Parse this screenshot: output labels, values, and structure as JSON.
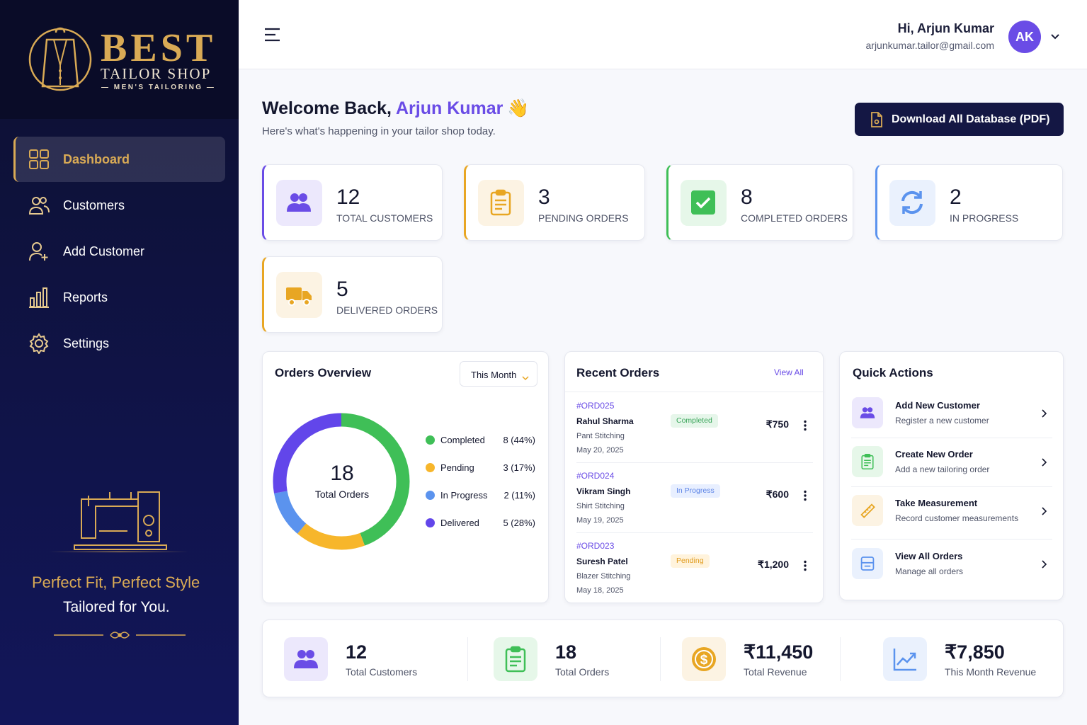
{
  "sidebar": {
    "brand": {
      "name": "BEST",
      "subtitle": "TAILOR SHOP",
      "tagline": "— MEN'S TAILORING —"
    },
    "nav": [
      {
        "label": "Dashboard",
        "active": true
      },
      {
        "label": "Customers",
        "active": false
      },
      {
        "label": "Add Customer",
        "active": false
      },
      {
        "label": "Reports",
        "active": false
      },
      {
        "label": "Settings",
        "active": false
      }
    ],
    "slogan": [
      "Perfect Fit, Perfect Style",
      "Tailored for You."
    ]
  },
  "header": {
    "greeting": "Hi, Arjun Kumar",
    "email": "arjunkumar.tailor@gmail.com",
    "initials": "AK"
  },
  "welcome": {
    "title": "Welcome Back, ",
    "name": "Arjun Kumar",
    "emoji": "👋",
    "subtitle": "Here's what's happening in your tailor shop today.",
    "button": "Download All Database (PDF)"
  },
  "stats": [
    {
      "value": 12,
      "label": "TOTAL CUSTOMERS",
      "color": "#6a4ce6"
    },
    {
      "value": 3,
      "label": "PENDING ORDERS",
      "color": "#e8a623"
    },
    {
      "value": 8,
      "label": "COMPLETED ORDERS",
      "color": "#3fbf57"
    },
    {
      "value": 2,
      "label": "IN PROGRESS",
      "color": "#5b93ee"
    },
    {
      "value": 5,
      "label": "DELIVERED ORDERS",
      "color": "#e8a623"
    }
  ],
  "orders_overview": {
    "title": "Orders Overview",
    "filter": "This Month",
    "total": 18,
    "total_label": "Total Orders",
    "categories": [
      "Completed",
      "Pending",
      "In Progress",
      "Delivered"
    ],
    "values": [
      8,
      3,
      2,
      5
    ],
    "value_labels": [
      "8 (44%)",
      "3 (17%)",
      "2 (11%)",
      "5 (28%)"
    ],
    "colors": [
      "#3fbf57",
      "#f7b62b",
      "#5b93ee",
      "#6246ea"
    ]
  },
  "recent_orders": {
    "title": "Recent Orders",
    "link": "View All",
    "orders": [
      {
        "id": "#ORD025",
        "customer": "Rahul Sharma",
        "item": "Pant Stitching",
        "date": "May 20, 2025",
        "status": "Completed",
        "amount": "₹750",
        "color": "#3aa55a",
        "bg": "#e6f6ea"
      },
      {
        "id": "#ORD024",
        "customer": "Vikram Singh",
        "item": "Shirt Stitching",
        "date": "May 19, 2025",
        "status": "In Progress",
        "amount": "₹600",
        "color": "#5b83e6",
        "bg": "#e8efff"
      },
      {
        "id": "#ORD023",
        "customer": "Suresh Patel",
        "item": "Blazer Stitching",
        "date": "May 18, 2025",
        "status": "Pending",
        "amount": "₹1,200",
        "color": "#e09a1a",
        "bg": "#fff3dc"
      }
    ]
  },
  "quick_actions": {
    "title": "Quick Actions",
    "items": [
      {
        "title": "Add New Customer",
        "subtitle": "Register a new customer",
        "color": "#6a4ce6"
      },
      {
        "title": "Create New Order",
        "subtitle": "Add a new tailoring order",
        "color": "#3fbf57"
      },
      {
        "title": "Take Measurement",
        "subtitle": "Record customer measurements",
        "color": "#e8a623"
      },
      {
        "title": "View All Orders",
        "subtitle": "Manage all orders",
        "color": "#5b93ee"
      }
    ]
  },
  "summary": [
    {
      "value": 12,
      "label": "Total Customers",
      "color": "#6a4ce6"
    },
    {
      "value": 18,
      "label": "Total Orders",
      "color": "#3fbf57"
    },
    {
      "value": "₹11,450",
      "label": "Total Revenue",
      "color": "#e8a623"
    },
    {
      "value": "₹7,850",
      "label": "This Month Revenue",
      "color": "#5b93ee"
    }
  ]
}
